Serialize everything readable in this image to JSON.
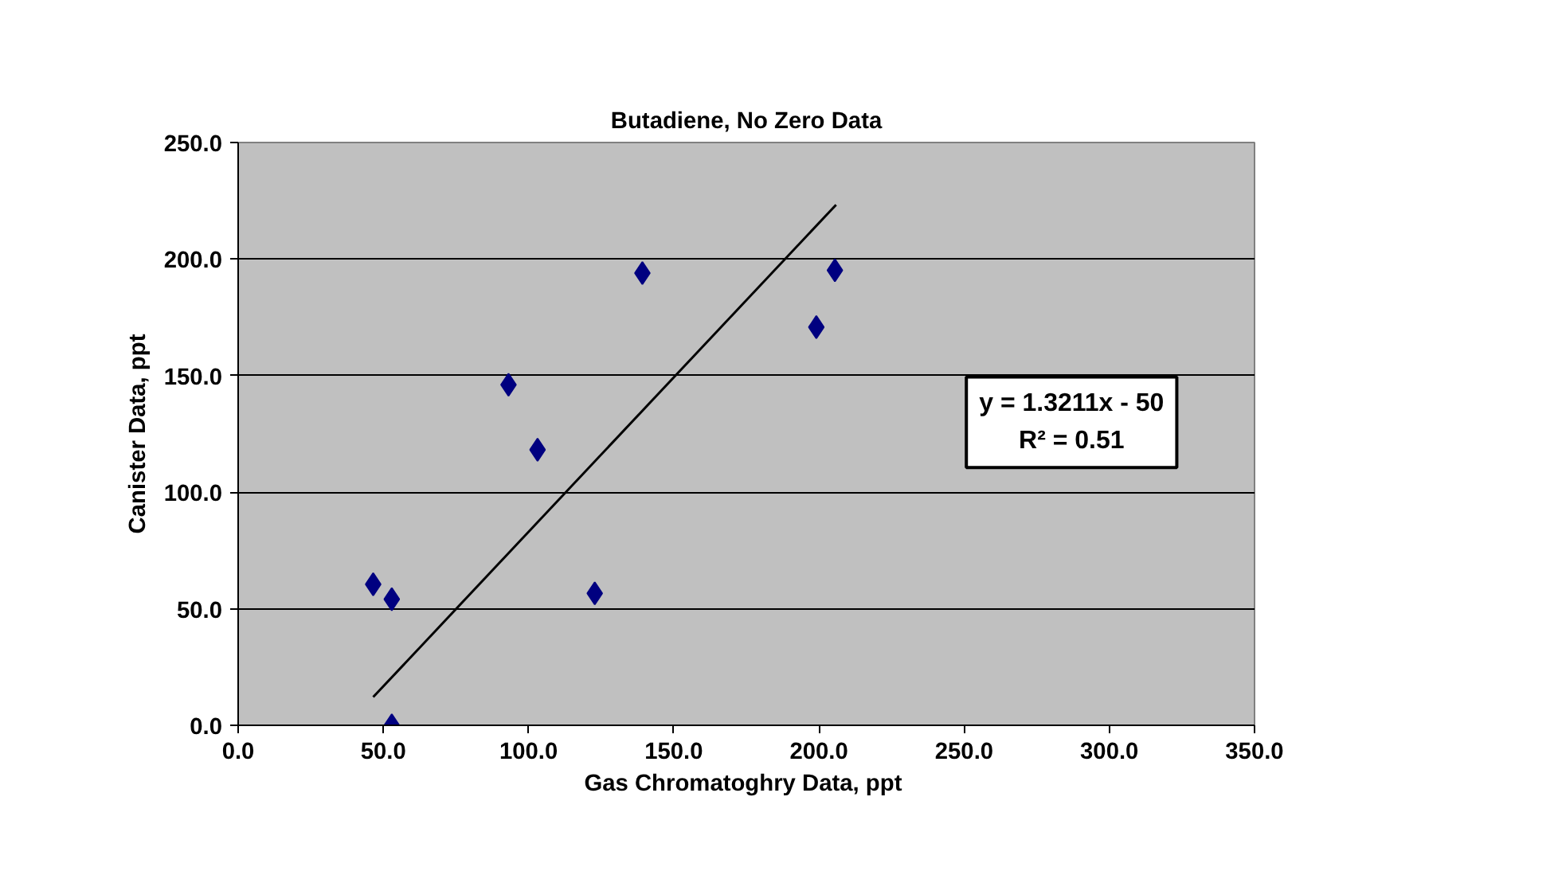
{
  "chart_data": {
    "type": "scatter",
    "title": "Butadiene, No Zero Data",
    "xlabel": "Gas Chromatoghry Data,  ppt",
    "ylabel": "Canister Data, ppt",
    "annotations": [
      "y = 1.3211x - 50\nR² = 0.51"
    ],
    "x": [
      46.5,
      52.9,
      52.9,
      93.1,
      103.1,
      122.8,
      139.2,
      199.1,
      205.5
    ],
    "series": [
      {
        "color": "#000080",
        "marker": "diamond",
        "values": [
          60.5,
          54.1,
          0,
          146.1,
          118.2,
          56.6,
          194.0,
          170.8,
          195.2
        ]
      },
      {
        "type": "line",
        "color": "#000000",
        "marker": "none",
        "line_style": "solid",
        "x": [
          46.5,
          205.9
        ],
        "values": [
          12.1,
          223.3
        ]
      }
    ],
    "xlim": [
      0,
      350
    ],
    "ylim": [
      0,
      250
    ],
    "xticks": [
      {
        "value": 0,
        "label": "0.0"
      },
      {
        "value": 50,
        "label": "50.0"
      },
      {
        "value": 100,
        "label": "100.0"
      },
      {
        "value": 150,
        "label": "150.0"
      },
      {
        "value": 200,
        "label": "200.0"
      },
      {
        "value": 250,
        "label": "250.0"
      },
      {
        "value": 300,
        "label": "300.0"
      },
      {
        "value": 350,
        "label": "350.0"
      }
    ],
    "yticks": [
      {
        "value": 0,
        "label": "0.0"
      },
      {
        "value": 50,
        "label": "50.0"
      },
      {
        "value": 100,
        "label": "100.0"
      },
      {
        "value": 150,
        "label": "150.0"
      },
      {
        "value": 200,
        "label": "200.0"
      },
      {
        "value": 250,
        "label": "250.0"
      }
    ],
    "grid": "y"
  }
}
